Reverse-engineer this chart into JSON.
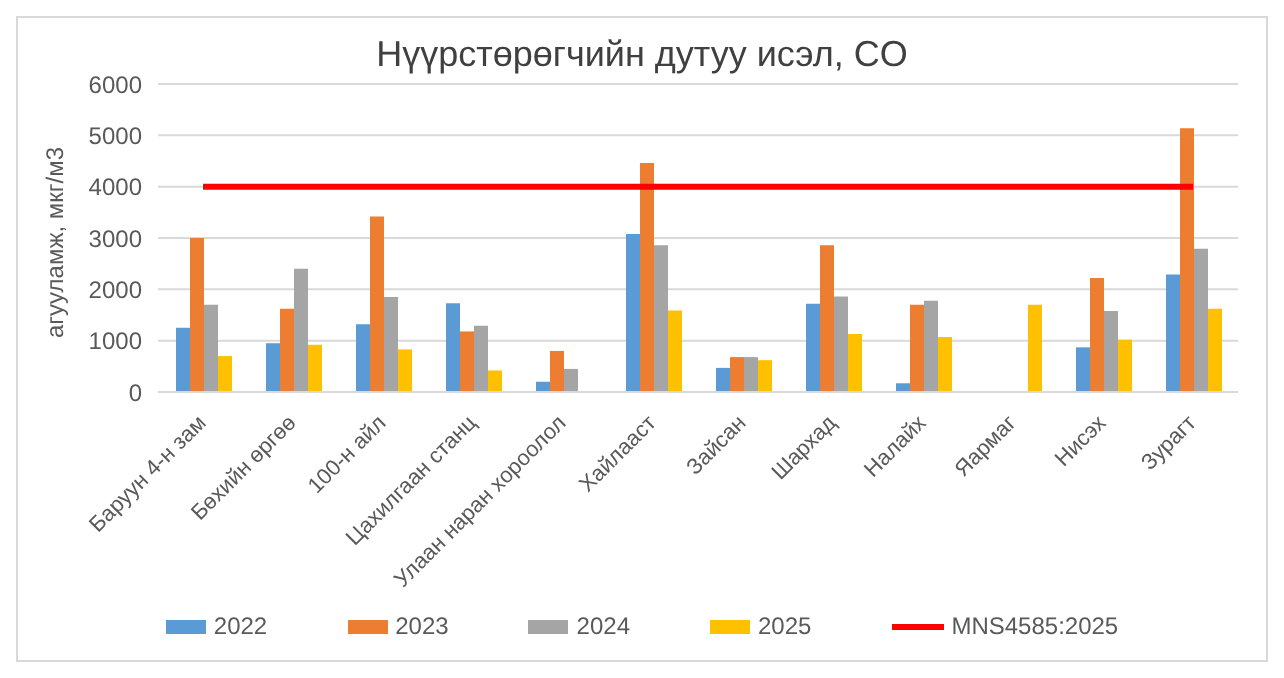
{
  "chart_data": {
    "type": "bar",
    "title": "Нүүрстөрөгчийн дутуу исэл, CO",
    "ylabel": "агууламж, мкг/м3",
    "categories": [
      "Баруун 4-н зам",
      "Бөхийн өргөө",
      "100-н айл",
      "Цахилгаан станц",
      "Улаан наран хороолол",
      "Хайлааст",
      "Зайсан",
      "Шархад",
      "Налайх",
      "Яармаг",
      "Нисэх",
      "Зурагт"
    ],
    "series": [
      {
        "name": "2022",
        "color": "#5b9bd5",
        "values": [
          1250,
          950,
          1320,
          1730,
          200,
          3080,
          470,
          1720,
          170,
          null,
          870,
          2290
        ]
      },
      {
        "name": "2023",
        "color": "#ed7d31",
        "values": [
          3000,
          1620,
          3420,
          1180,
          800,
          4460,
          680,
          2860,
          1700,
          null,
          2220,
          5140
        ]
      },
      {
        "name": "2024",
        "color": "#a5a5a5",
        "values": [
          1700,
          2400,
          1850,
          1290,
          450,
          2860,
          680,
          1860,
          1780,
          null,
          1580,
          2790
        ]
      },
      {
        "name": "2025",
        "color": "#ffc000",
        "values": [
          700,
          920,
          830,
          420,
          null,
          1590,
          620,
          1130,
          1070,
          1700,
          1020,
          1620
        ]
      },
      {
        "name": "MNS4585:2025",
        "type": "line",
        "color": "#ff0000",
        "values": [
          4000,
          4000,
          4000,
          4000,
          4000,
          4000,
          4000,
          4000,
          4000,
          4000,
          4000,
          4000
        ]
      }
    ],
    "marker": "none",
    "ylim": [
      0,
      6000
    ],
    "yticks": [
      0,
      1000,
      2000,
      3000,
      4000,
      5000,
      6000
    ],
    "grid": "y",
    "legend": "bottom"
  }
}
